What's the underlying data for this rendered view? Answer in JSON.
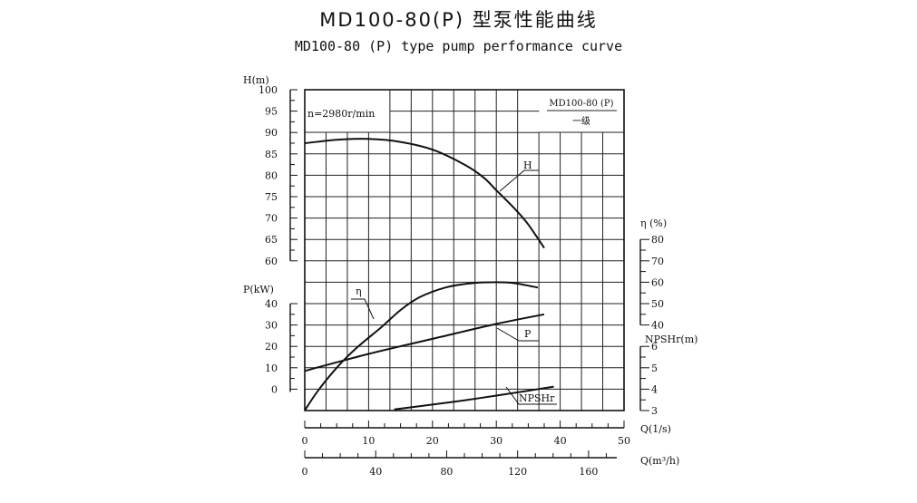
{
  "title": "MD100-80(P) 型泵性能曲线",
  "subtitle": "MD100-80 (P) type pump performance curve",
  "chart_data": {
    "type": "line",
    "speed_note": "n=2980r/min",
    "legend_box": {
      "model": "MD100-80 (P)",
      "stage": "一级"
    },
    "axes": {
      "H": {
        "label": "H(m)",
        "min": 60,
        "max": 100,
        "step": 5,
        "ticks": [
          "100",
          "95",
          "90",
          "85",
          "80",
          "75",
          "70",
          "65",
          "60"
        ]
      },
      "P": {
        "label": "P(kW)",
        "min": 0,
        "max": 40,
        "step": 10,
        "ticks": [
          "40",
          "30",
          "20",
          "10",
          "0"
        ]
      },
      "eta": {
        "label": "η (%)",
        "min": 40,
        "max": 80,
        "step": 10,
        "ticks": [
          "80",
          "70",
          "60",
          "50",
          "40"
        ]
      },
      "npsh": {
        "label": "NPSHr(m)",
        "min": 3,
        "max": 6,
        "step": 1,
        "ticks": [
          "6",
          "5",
          "4",
          "3"
        ]
      },
      "Q_ls": {
        "label": "Q(1/s)",
        "min": 0,
        "max": 50,
        "step": 10,
        "ticks": [
          "0",
          "10",
          "20",
          "30",
          "40",
          "50"
        ]
      },
      "Q_m3h": {
        "label": "Q(m³/h)",
        "ticks": [
          "0",
          "40",
          "80",
          "120",
          "160"
        ],
        "values": [
          0,
          40,
          80,
          120,
          160
        ]
      }
    },
    "series": [
      {
        "name": "H",
        "x": [
          0,
          5,
          10,
          15,
          20,
          25,
          28,
          30,
          33,
          35,
          37.5
        ],
        "y": [
          87.5,
          88.3,
          88.5,
          87.8,
          86,
          82.5,
          79.5,
          76.5,
          72,
          68.5,
          63
        ]
      },
      {
        "name": "η",
        "x": [
          0,
          2,
          5,
          8,
          12,
          15,
          18,
          22,
          26,
          30,
          33,
          36.5
        ],
        "y": [
          0,
          9,
          20,
          29,
          39,
          47,
          53,
          57.5,
          59.5,
          60,
          59.5,
          57.5
        ]
      },
      {
        "name": "P",
        "x": [
          0,
          10,
          20,
          30,
          37.5
        ],
        "y": [
          8.5,
          16.5,
          23.5,
          30.5,
          35
        ]
      },
      {
        "name": "NPSHr",
        "x": [
          14,
          20,
          25,
          30,
          35,
          39
        ],
        "y": [
          3.05,
          3.28,
          3.48,
          3.7,
          3.93,
          4.12
        ]
      }
    ]
  }
}
